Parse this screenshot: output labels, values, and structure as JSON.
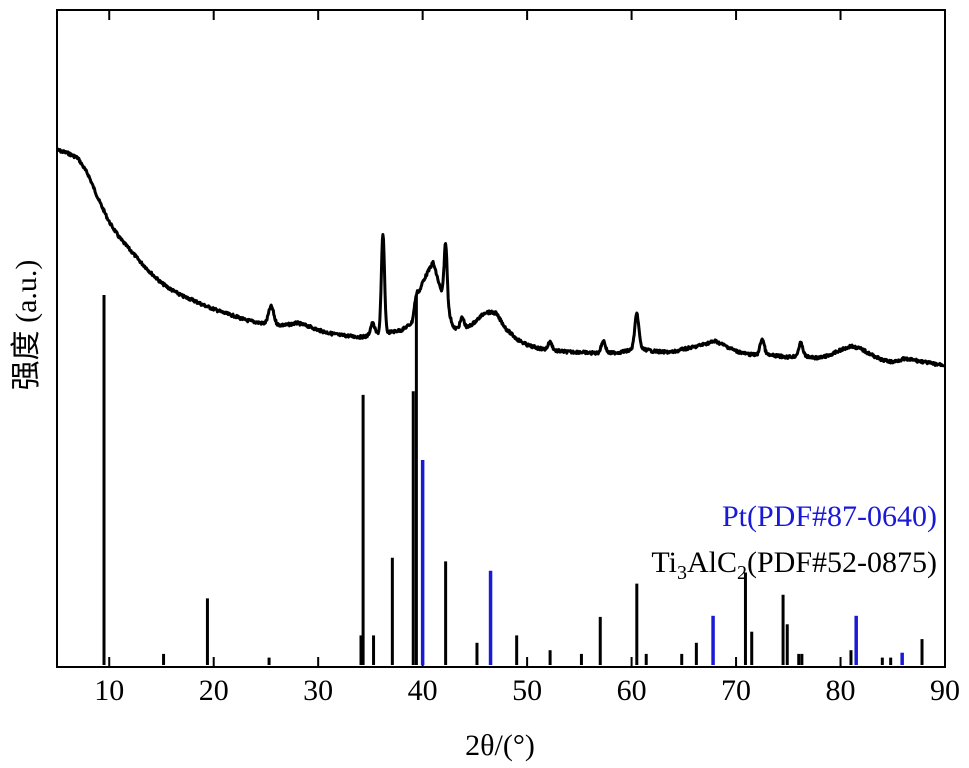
{
  "chart_data": {
    "type": "line",
    "xlabel": "2θ/(°)",
    "ylabel": "强度 (a.u.)",
    "xlim": [
      5,
      90
    ],
    "xticks": [
      10,
      20,
      30,
      40,
      50,
      60,
      70,
      80,
      90
    ],
    "grid": false,
    "legend_position": "bottom-right",
    "colors": {
      "measured": "#000000",
      "Ti3AlC2": "#000000",
      "Pt": "#1a1ad6"
    },
    "legend": [
      {
        "name_parts": [
          "Pt(PDF#87-0640)"
        ],
        "color": "#1a1ad6"
      },
      {
        "name_parts": [
          "Ti",
          "3",
          "AlC",
          "2",
          "(PDF#52-0875)"
        ],
        "color": "#000000"
      }
    ],
    "measured_pattern": {
      "points": [
        [
          5,
          150
        ],
        [
          6,
          153
        ],
        [
          7,
          158
        ],
        [
          8,
          175
        ],
        [
          9,
          200
        ],
        [
          10,
          222
        ],
        [
          11,
          238
        ],
        [
          12,
          250
        ],
        [
          13,
          262
        ],
        [
          14,
          273
        ],
        [
          15,
          283
        ],
        [
          16,
          290
        ],
        [
          17,
          296
        ],
        [
          18,
          300
        ],
        [
          19,
          305
        ],
        [
          20,
          309
        ],
        [
          21,
          313
        ],
        [
          22,
          316
        ],
        [
          23,
          320
        ],
        [
          24,
          322
        ],
        [
          25,
          324
        ],
        [
          26,
          325
        ],
        [
          27,
          325
        ],
        [
          28,
          323
        ],
        [
          29,
          326
        ],
        [
          30,
          330
        ],
        [
          31,
          333
        ],
        [
          32,
          335
        ],
        [
          33,
          336
        ],
        [
          34,
          337
        ],
        [
          35,
          336
        ],
        [
          36,
          333
        ],
        [
          37,
          332
        ],
        [
          38,
          330
        ],
        [
          39,
          323
        ],
        [
          40,
          282
        ],
        [
          41,
          262
        ],
        [
          42,
          300
        ],
        [
          43,
          328
        ],
        [
          44,
          330
        ],
        [
          45,
          322
        ],
        [
          46,
          312
        ],
        [
          47,
          313
        ],
        [
          48,
          329
        ],
        [
          49,
          339
        ],
        [
          50,
          345
        ],
        [
          51,
          348
        ],
        [
          52,
          350
        ],
        [
          53,
          351
        ],
        [
          54,
          352
        ],
        [
          55,
          352
        ],
        [
          56,
          353
        ],
        [
          57,
          353
        ],
        [
          58,
          353
        ],
        [
          59,
          352
        ],
        [
          60,
          350
        ],
        [
          61,
          349
        ],
        [
          62,
          351
        ],
        [
          63,
          352
        ],
        [
          64,
          352
        ],
        [
          65,
          349
        ],
        [
          66,
          347
        ],
        [
          67,
          344
        ],
        [
          68,
          341
        ],
        [
          69,
          346
        ],
        [
          70,
          351
        ],
        [
          71,
          354
        ],
        [
          72,
          355
        ],
        [
          73,
          355
        ],
        [
          74,
          356
        ],
        [
          75,
          357
        ],
        [
          76,
          356
        ],
        [
          77,
          357
        ],
        [
          78,
          358
        ],
        [
          79,
          355
        ],
        [
          80,
          350
        ],
        [
          81,
          346
        ],
        [
          82,
          349
        ],
        [
          83,
          355
        ],
        [
          84,
          360
        ],
        [
          85,
          362
        ],
        [
          86,
          359
        ],
        [
          87,
          360
        ],
        [
          88,
          362
        ],
        [
          89,
          364
        ],
        [
          90,
          365
        ]
      ],
      "peaks": [
        {
          "x": 25.5,
          "height": 18,
          "width": 0.25
        },
        {
          "x": 35.2,
          "height": 12,
          "width": 0.2
        },
        {
          "x": 36.2,
          "height": 98,
          "width": 0.15
        },
        {
          "x": 39.4,
          "height": 12,
          "width": 0.2
        },
        {
          "x": 42.2,
          "height": 62,
          "width": 0.15
        },
        {
          "x": 43.8,
          "height": 12,
          "width": 0.2
        },
        {
          "x": 52.2,
          "height": 8,
          "width": 0.2
        },
        {
          "x": 57.3,
          "height": 12,
          "width": 0.2
        },
        {
          "x": 60.5,
          "height": 35,
          "width": 0.2
        },
        {
          "x": 72.5,
          "height": 16,
          "width": 0.2
        },
        {
          "x": 76.2,
          "height": 13,
          "width": 0.2
        }
      ]
    },
    "reference_ti3alc2": {
      "name": "Ti3AlC2 (PDF#52-0875)",
      "peaks": [
        [
          9.5,
          100
        ],
        [
          15.2,
          3
        ],
        [
          19.4,
          18
        ],
        [
          25.3,
          2
        ],
        [
          34.1,
          8
        ],
        [
          34.3,
          73
        ],
        [
          35.3,
          8
        ],
        [
          37.1,
          29
        ],
        [
          39.1,
          74
        ],
        [
          39.4,
          100
        ],
        [
          42.2,
          28
        ],
        [
          45.2,
          6
        ],
        [
          49.0,
          8
        ],
        [
          52.2,
          4
        ],
        [
          55.2,
          3
        ],
        [
          57.0,
          13
        ],
        [
          60.5,
          22
        ],
        [
          61.4,
          3
        ],
        [
          64.8,
          3
        ],
        [
          66.2,
          6
        ],
        [
          70.9,
          25
        ],
        [
          71.5,
          9
        ],
        [
          74.5,
          19
        ],
        [
          74.9,
          11
        ],
        [
          76.0,
          3
        ],
        [
          76.3,
          3
        ],
        [
          81.0,
          4
        ],
        [
          84.0,
          2
        ],
        [
          84.8,
          2
        ],
        [
          87.8,
          7
        ]
      ]
    },
    "reference_pt": {
      "name": "Pt (PDF#87-0640)",
      "peaks": [
        [
          40.0,
          100
        ],
        [
          46.5,
          46
        ],
        [
          67.8,
          24
        ],
        [
          81.5,
          24
        ],
        [
          85.9,
          6
        ]
      ]
    }
  }
}
